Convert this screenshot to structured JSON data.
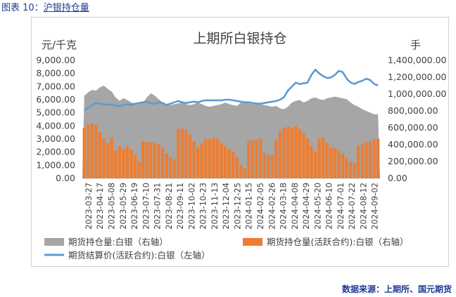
{
  "caption": {
    "prefix": "图表 10：",
    "link": "沪银持仓量"
  },
  "source": "数据来源：上期所、国元期货",
  "colors": {
    "area": "#a6a6a6",
    "bars": "#ed7d31",
    "line": "#5b9bd5"
  },
  "chart_data": {
    "type": "combo",
    "title": "上期所白银持仓",
    "left_axis": {
      "label": "元/千克",
      "ylim": [
        0,
        9000
      ],
      "ticks": [
        "0.00",
        "1,000.00",
        "2,000.00",
        "3,000.00",
        "4,000.00",
        "5,000.00",
        "6,000.00",
        "7,000.00",
        "8,000.00",
        "9,000.00"
      ]
    },
    "right_axis": {
      "label": "手",
      "ylim": [
        0,
        1400000
      ],
      "ticks": [
        "0.00",
        "200,000.00",
        "400,000.00",
        "600,000.00",
        "800,000.00",
        "1,000,000.00",
        "1,200,000.00",
        "1,400,000.00"
      ]
    },
    "x_tick_labels": [
      "2023-03-27",
      "2023-04-17",
      "2023-05-08",
      "2023-05-29",
      "2023-06-19",
      "2023-07-10",
      "2023-07-31",
      "2023-08-21",
      "2023-09-11",
      "2023-10-02",
      "2023-10-23",
      "2023-11-13",
      "2023-12-04",
      "2023-12-25",
      "2024-01-15",
      "2024-02-05",
      "2024-02-26",
      "2024-03-18",
      "2024-04-08",
      "2024-04-29",
      "2024-05-20",
      "2024-06-10",
      "2024-07-01",
      "2024-07-22",
      "2024-08-12",
      "2024-09-02"
    ],
    "legend": {
      "area": "期货持仓量:白银（右轴）",
      "bars": "期货持仓量(活跃合约):白银（右轴）",
      "line": "期货结算价(活跃合约):白银（左轴）"
    },
    "series": [
      {
        "name": "期货持仓量:白银（右轴）",
        "type": "area",
        "axis": "right",
        "values": [
          980000,
          1020000,
          1050000,
          1040000,
          1080000,
          1100000,
          1060000,
          1030000,
          960000,
          920000,
          950000,
          930000,
          900000,
          890000,
          880000,
          900000,
          960000,
          1010000,
          980000,
          940000,
          900000,
          880000,
          870000,
          880000,
          890000,
          900000,
          880000,
          870000,
          880000,
          900000,
          880000,
          860000,
          850000,
          860000,
          870000,
          880000,
          900000,
          880000,
          870000,
          860000,
          900000,
          910000,
          890000,
          880000,
          900000,
          880000,
          870000,
          860000,
          850000,
          860000,
          830000,
          820000,
          850000,
          900000,
          920000,
          930000,
          900000,
          920000,
          950000,
          960000,
          940000,
          930000,
          950000,
          960000,
          970000,
          960000,
          950000,
          940000,
          900000,
          870000,
          850000,
          820000,
          800000,
          780000,
          760000,
          760000
        ]
      },
      {
        "name": "期货持仓量(活跃合约):白银（右轴）",
        "type": "bar",
        "axis": "right",
        "values": [
          600000,
          640000,
          650000,
          630000,
          550000,
          470000,
          420000,
          480000,
          330000,
          380000,
          350000,
          380000,
          340000,
          280000,
          200000,
          440000,
          430000,
          430000,
          420000,
          400000,
          370000,
          300000,
          250000,
          230000,
          590000,
          590000,
          570000,
          520000,
          440000,
          370000,
          420000,
          470000,
          470000,
          480000,
          470000,
          420000,
          380000,
          350000,
          320000,
          250000,
          160000,
          120000,
          450000,
          450000,
          460000,
          470000,
          300000,
          280000,
          280000,
          450000,
          560000,
          600000,
          610000,
          600000,
          620000,
          590000,
          540000,
          470000,
          380000,
          310000,
          470000,
          480000,
          420000,
          370000,
          360000,
          330000,
          300000,
          240000,
          200000,
          180000,
          390000,
          400000,
          430000,
          440000,
          460000,
          470000
        ]
      },
      {
        "name": "期货结算价(活跃合约):白银（左轴）",
        "type": "line",
        "axis": "left",
        "values": [
          5200,
          5400,
          5600,
          5750,
          5700,
          5650,
          5600,
          5650,
          5550,
          5500,
          5600,
          5650,
          5600,
          5700,
          5750,
          5800,
          5850,
          5700,
          5700,
          5800,
          5750,
          5600,
          5700,
          5800,
          5900,
          5800,
          5750,
          5800,
          5850,
          5800,
          5900,
          5950,
          5950,
          5950,
          5950,
          5950,
          6000,
          6000,
          5950,
          5900,
          5850,
          5800,
          5800,
          5750,
          5700,
          5700,
          5750,
          5800,
          5850,
          5900,
          6000,
          6200,
          6700,
          7000,
          7300,
          7200,
          7250,
          7300,
          7900,
          8300,
          8000,
          7800,
          7650,
          7700,
          7900,
          8200,
          8100,
          7600,
          7300,
          7200,
          7350,
          7450,
          7600,
          7500,
          7200,
          7100
        ]
      }
    ]
  }
}
